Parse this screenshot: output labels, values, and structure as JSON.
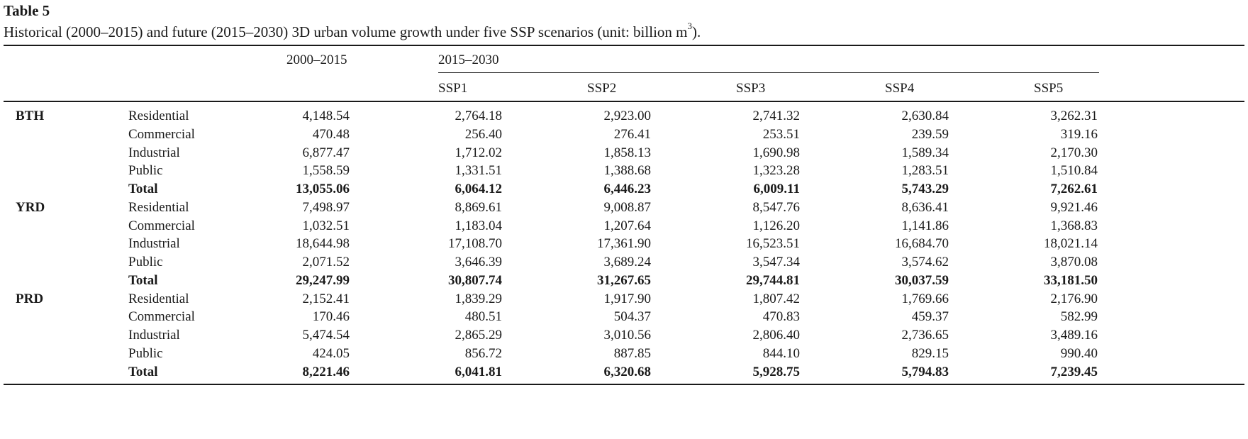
{
  "title": "Table 5",
  "caption": {
    "text": "Historical (2000–2015) and future (2015–2030) 3D urban volume growth under five SSP scenarios (unit: billion m",
    "sup": "3",
    "end": ")."
  },
  "headers": {
    "historical": "2000–2015",
    "future": "2015–2030",
    "scenarios": [
      "SSP1",
      "SSP2",
      "SSP3",
      "SSP4",
      "SSP5"
    ]
  },
  "regions": [
    {
      "name": "BTH",
      "rows": [
        {
          "type": "Residential",
          "values": [
            "4,148.54",
            "2,764.18",
            "2,923.00",
            "2,741.32",
            "2,630.84",
            "3,262.31"
          ]
        },
        {
          "type": "Commercial",
          "values": [
            "470.48",
            "256.40",
            "276.41",
            "253.51",
            "239.59",
            "319.16"
          ]
        },
        {
          "type": "Industrial",
          "values": [
            "6,877.47",
            "1,712.02",
            "1,858.13",
            "1,690.98",
            "1,589.34",
            "2,170.30"
          ]
        },
        {
          "type": "Public",
          "values": [
            "1,558.59",
            "1,331.51",
            "1,388.68",
            "1,323.28",
            "1,283.51",
            "1,510.84"
          ]
        },
        {
          "type": "Total",
          "values": [
            "13,055.06",
            "6,064.12",
            "6,446.23",
            "6,009.11",
            "5,743.29",
            "7,262.61"
          ]
        }
      ]
    },
    {
      "name": "YRD",
      "rows": [
        {
          "type": "Residential",
          "values": [
            "7,498.97",
            "8,869.61",
            "9,008.87",
            "8,547.76",
            "8,636.41",
            "9,921.46"
          ]
        },
        {
          "type": "Commercial",
          "values": [
            "1,032.51",
            "1,183.04",
            "1,207.64",
            "1,126.20",
            "1,141.86",
            "1,368.83"
          ]
        },
        {
          "type": "Industrial",
          "values": [
            "18,644.98",
            "17,108.70",
            "17,361.90",
            "16,523.51",
            "16,684.70",
            "18,021.14"
          ]
        },
        {
          "type": "Public",
          "values": [
            "2,071.52",
            "3,646.39",
            "3,689.24",
            "3,547.34",
            "3,574.62",
            "3,870.08"
          ]
        },
        {
          "type": "Total",
          "values": [
            "29,247.99",
            "30,807.74",
            "31,267.65",
            "29,744.81",
            "30,037.59",
            "33,181.50"
          ]
        }
      ]
    },
    {
      "name": "PRD",
      "rows": [
        {
          "type": "Residential",
          "values": [
            "2,152.41",
            "1,839.29",
            "1,917.90",
            "1,807.42",
            "1,769.66",
            "2,176.90"
          ]
        },
        {
          "type": "Commercial",
          "values": [
            "170.46",
            "480.51",
            "504.37",
            "470.83",
            "459.37",
            "582.99"
          ]
        },
        {
          "type": "Industrial",
          "values": [
            "5,474.54",
            "2,865.29",
            "3,010.56",
            "2,806.40",
            "2,736.65",
            "3,489.16"
          ]
        },
        {
          "type": "Public",
          "values": [
            "424.05",
            "856.72",
            "887.85",
            "844.10",
            "829.15",
            "990.40"
          ]
        },
        {
          "type": "Total",
          "values": [
            "8,221.46",
            "6,041.81",
            "6,320.68",
            "5,928.75",
            "5,794.83",
            "7,239.45"
          ]
        }
      ]
    }
  ]
}
